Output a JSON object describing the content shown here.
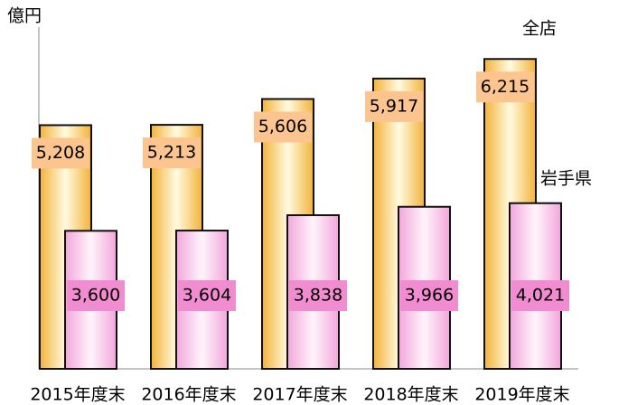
{
  "chart_data": {
    "type": "bar",
    "unit_label": "億円",
    "categories": [
      "2015年度末",
      "2016年度末",
      "2017年度末",
      "2018年度末",
      "2019年度末"
    ],
    "series": [
      {
        "name": "全店",
        "color": "#f5b53a",
        "values": [
          5208,
          5213,
          5606,
          5917,
          6215
        ],
        "value_labels": [
          "5,208",
          "5,213",
          "5,606",
          "5,917",
          "6,215"
        ]
      },
      {
        "name": "岩手県",
        "color": "#f2a6dc",
        "values": [
          3600,
          3604,
          3838,
          3966,
          4021
        ],
        "value_labels": [
          "3,600",
          "3,604",
          "3,838",
          "3,966",
          "4,021"
        ]
      }
    ],
    "ylim": [
      1500,
      6700
    ]
  }
}
